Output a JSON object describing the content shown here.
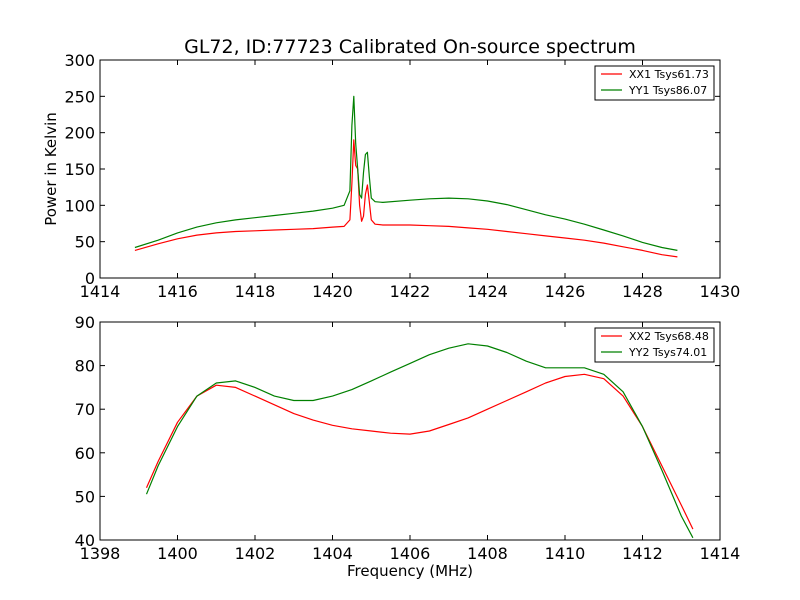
{
  "chart_data": [
    {
      "type": "line",
      "title": "GL72, ID:77723 Calibrated On-source spectrum",
      "xlabel": "",
      "ylabel": "Power in Kelvin",
      "xlim": [
        1414,
        1430
      ],
      "ylim": [
        0,
        300
      ],
      "xticks": [
        1414,
        1416,
        1418,
        1420,
        1422,
        1424,
        1426,
        1428,
        1430
      ],
      "yticks": [
        0,
        50,
        100,
        150,
        200,
        250,
        300
      ],
      "grid": false,
      "legend_position": "top-right",
      "series": [
        {
          "name": "XX1 Tsys61.73",
          "color": "#ff0000",
          "x": [
            1414.9,
            1415.5,
            1416.0,
            1416.5,
            1417.0,
            1417.5,
            1418.0,
            1418.5,
            1419.0,
            1419.5,
            1420.0,
            1420.3,
            1420.45,
            1420.5,
            1420.55,
            1420.6,
            1420.65,
            1420.7,
            1420.75,
            1420.8,
            1420.85,
            1420.9,
            1420.95,
            1421.0,
            1421.1,
            1421.3,
            1422.0,
            1422.5,
            1423.0,
            1423.5,
            1424.0,
            1424.5,
            1425.0,
            1425.5,
            1426.0,
            1426.5,
            1427.0,
            1427.5,
            1428.0,
            1428.5,
            1428.9
          ],
          "values": [
            38,
            47,
            54,
            59,
            62,
            64,
            65,
            66,
            67,
            68,
            70,
            71,
            80,
            130,
            190,
            155,
            150,
            100,
            78,
            85,
            115,
            128,
            105,
            80,
            74,
            73,
            73,
            72,
            71,
            69,
            67,
            64,
            61,
            58,
            55,
            52,
            48,
            43,
            38,
            32,
            29
          ]
        },
        {
          "name": "YY1 Tsys86.07",
          "color": "#008000",
          "x": [
            1414.9,
            1415.5,
            1416.0,
            1416.5,
            1417.0,
            1417.5,
            1418.0,
            1418.5,
            1419.0,
            1419.5,
            1420.0,
            1420.3,
            1420.45,
            1420.5,
            1420.55,
            1420.6,
            1420.65,
            1420.7,
            1420.75,
            1420.8,
            1420.85,
            1420.9,
            1420.95,
            1421.0,
            1421.1,
            1421.3,
            1422.0,
            1422.5,
            1423.0,
            1423.5,
            1424.0,
            1424.5,
            1425.0,
            1425.5,
            1426.0,
            1426.5,
            1427.0,
            1427.5,
            1428.0,
            1428.5,
            1428.9
          ],
          "values": [
            42,
            52,
            62,
            70,
            76,
            80,
            83,
            86,
            89,
            92,
            96,
            100,
            120,
            210,
            250,
            185,
            150,
            115,
            110,
            145,
            170,
            173,
            140,
            110,
            105,
            104,
            107,
            109,
            110,
            109,
            106,
            101,
            94,
            87,
            81,
            74,
            66,
            58,
            49,
            42,
            38
          ]
        }
      ]
    },
    {
      "type": "line",
      "title": "",
      "xlabel": "Frequency (MHz)",
      "ylabel": "",
      "xlim": [
        1398,
        1414
      ],
      "ylim": [
        40,
        90
      ],
      "xticks": [
        1398,
        1400,
        1402,
        1404,
        1406,
        1408,
        1410,
        1412,
        1414
      ],
      "yticks": [
        40,
        50,
        60,
        70,
        80,
        90
      ],
      "grid": false,
      "legend_position": "top-right",
      "series": [
        {
          "name": "XX2 Tsys68.48",
          "color": "#ff0000",
          "x": [
            1399.2,
            1399.5,
            1400.0,
            1400.5,
            1401.0,
            1401.5,
            1402.0,
            1402.5,
            1403.0,
            1403.5,
            1404.0,
            1404.5,
            1405.0,
            1405.5,
            1406.0,
            1406.5,
            1407.0,
            1407.5,
            1408.0,
            1408.5,
            1409.0,
            1409.5,
            1410.0,
            1410.5,
            1411.0,
            1411.5,
            1412.0,
            1412.5,
            1413.0,
            1413.3
          ],
          "values": [
            52,
            58,
            67,
            73,
            75.5,
            75,
            73,
            71,
            69,
            67.5,
            66.3,
            65.5,
            65,
            64.5,
            64.3,
            65,
            66.5,
            68,
            70,
            72,
            74,
            76,
            77.5,
            78,
            77,
            73,
            66,
            57,
            48,
            42.5
          ]
        },
        {
          "name": "YY2 Tsys74.01",
          "color": "#008000",
          "x": [
            1399.2,
            1399.5,
            1400.0,
            1400.5,
            1401.0,
            1401.5,
            1402.0,
            1402.5,
            1403.0,
            1403.5,
            1404.0,
            1404.5,
            1405.0,
            1405.5,
            1406.0,
            1406.5,
            1407.0,
            1407.5,
            1408.0,
            1408.5,
            1409.0,
            1409.5,
            1410.0,
            1410.5,
            1411.0,
            1411.5,
            1412.0,
            1412.5,
            1413.0,
            1413.3
          ],
          "values": [
            50.5,
            57,
            66,
            73,
            76,
            76.5,
            75,
            73,
            72,
            72,
            73,
            74.5,
            76.5,
            78.5,
            80.5,
            82.5,
            84,
            85,
            84.5,
            83,
            81,
            79.5,
            79.5,
            79.5,
            78,
            74,
            66,
            56,
            45.5,
            40.5
          ]
        }
      ]
    }
  ]
}
